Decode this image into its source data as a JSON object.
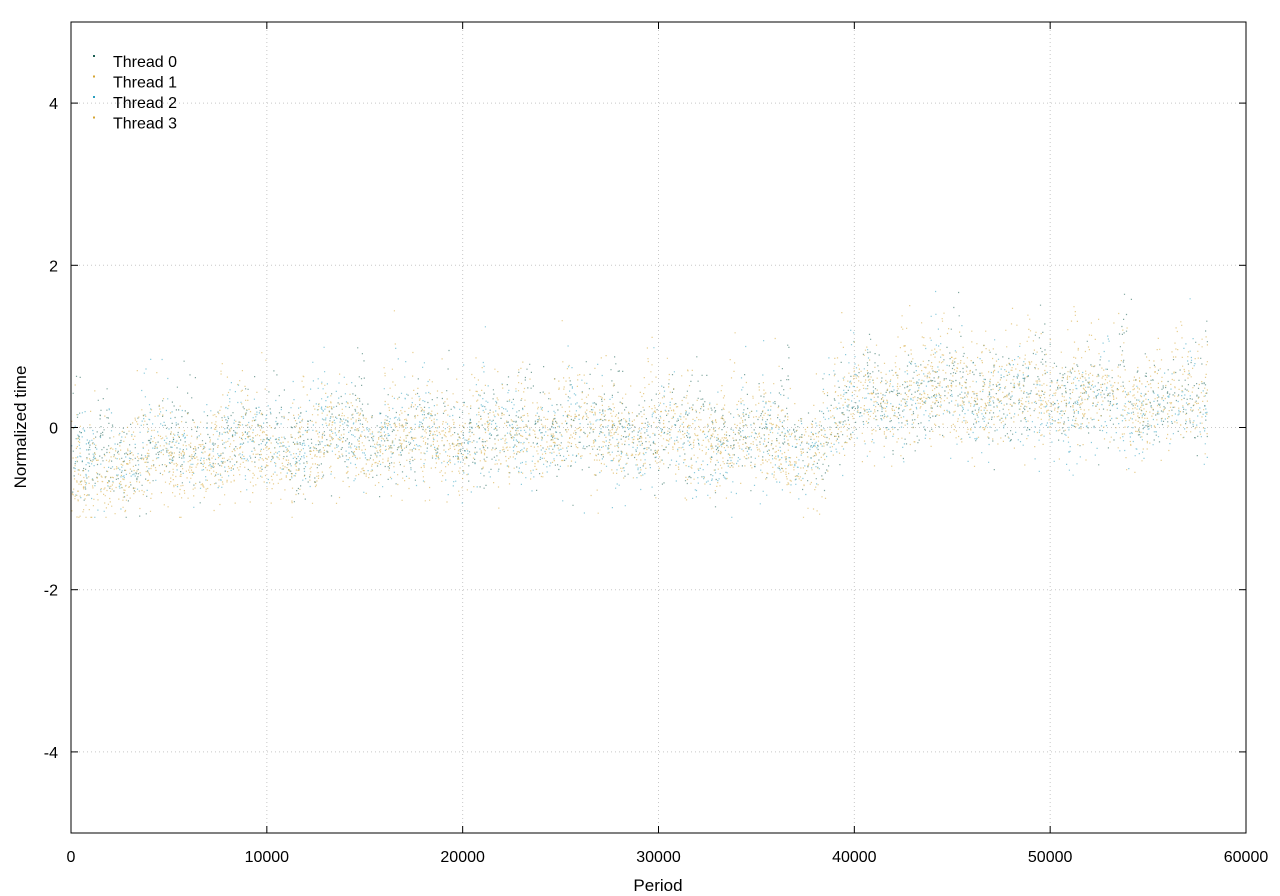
{
  "chart_data": {
    "type": "scatter",
    "title": "",
    "xlabel": "Period",
    "ylabel": "Normalized time",
    "xlim": [
      0,
      60000
    ],
    "ylim": [
      -5,
      5
    ],
    "x_ticks": [
      0,
      10000,
      20000,
      30000,
      40000,
      50000,
      60000
    ],
    "y_ticks": [
      -4,
      -2,
      0,
      2,
      4
    ],
    "grid": true,
    "legend_position": "top-left",
    "n_points": 58000,
    "series": [
      {
        "name": "Thread 0",
        "color": "#1a5e52",
        "trend_x": [
          0,
          5000,
          10000,
          15000,
          20000,
          25000,
          30000,
          35000,
          38000,
          40000,
          45000,
          50000,
          55000,
          58000
        ],
        "trend_y": [
          -0.55,
          -0.35,
          -0.25,
          -0.2,
          -0.15,
          -0.1,
          -0.1,
          -0.15,
          -0.3,
          0.3,
          0.35,
          0.35,
          0.3,
          0.35
        ]
      },
      {
        "name": "Thread 1",
        "color": "#d6a533",
        "trend_x": [
          0,
          5000,
          10000,
          15000,
          20000,
          25000,
          30000,
          35000,
          38000,
          40000,
          45000,
          50000,
          55000,
          58000
        ],
        "trend_y": [
          -0.65,
          -0.45,
          -0.35,
          -0.25,
          -0.2,
          -0.15,
          -0.15,
          -0.25,
          -0.45,
          0.25,
          0.35,
          0.3,
          0.25,
          0.3
        ]
      },
      {
        "name": "Thread 2",
        "color": "#2a9fc0",
        "trend_x": [
          0,
          5000,
          10000,
          15000,
          20000,
          25000,
          30000,
          35000,
          38000,
          40000,
          45000,
          50000,
          55000,
          58000
        ],
        "trend_y": [
          -0.5,
          -0.35,
          -0.25,
          -0.2,
          -0.2,
          -0.2,
          -0.25,
          -0.4,
          -0.35,
          0.2,
          0.2,
          0.15,
          0.1,
          0.15
        ]
      },
      {
        "name": "Thread 3",
        "color": "#d6a533",
        "trend_x": [
          0,
          5000,
          10000,
          15000,
          20000,
          25000,
          30000,
          35000,
          38000,
          40000,
          45000,
          50000,
          55000,
          58000
        ],
        "trend_y": [
          -0.7,
          -0.45,
          -0.35,
          -0.25,
          -0.2,
          -0.15,
          -0.15,
          -0.2,
          -0.45,
          0.3,
          0.4,
          0.35,
          0.3,
          0.3
        ]
      }
    ]
  }
}
